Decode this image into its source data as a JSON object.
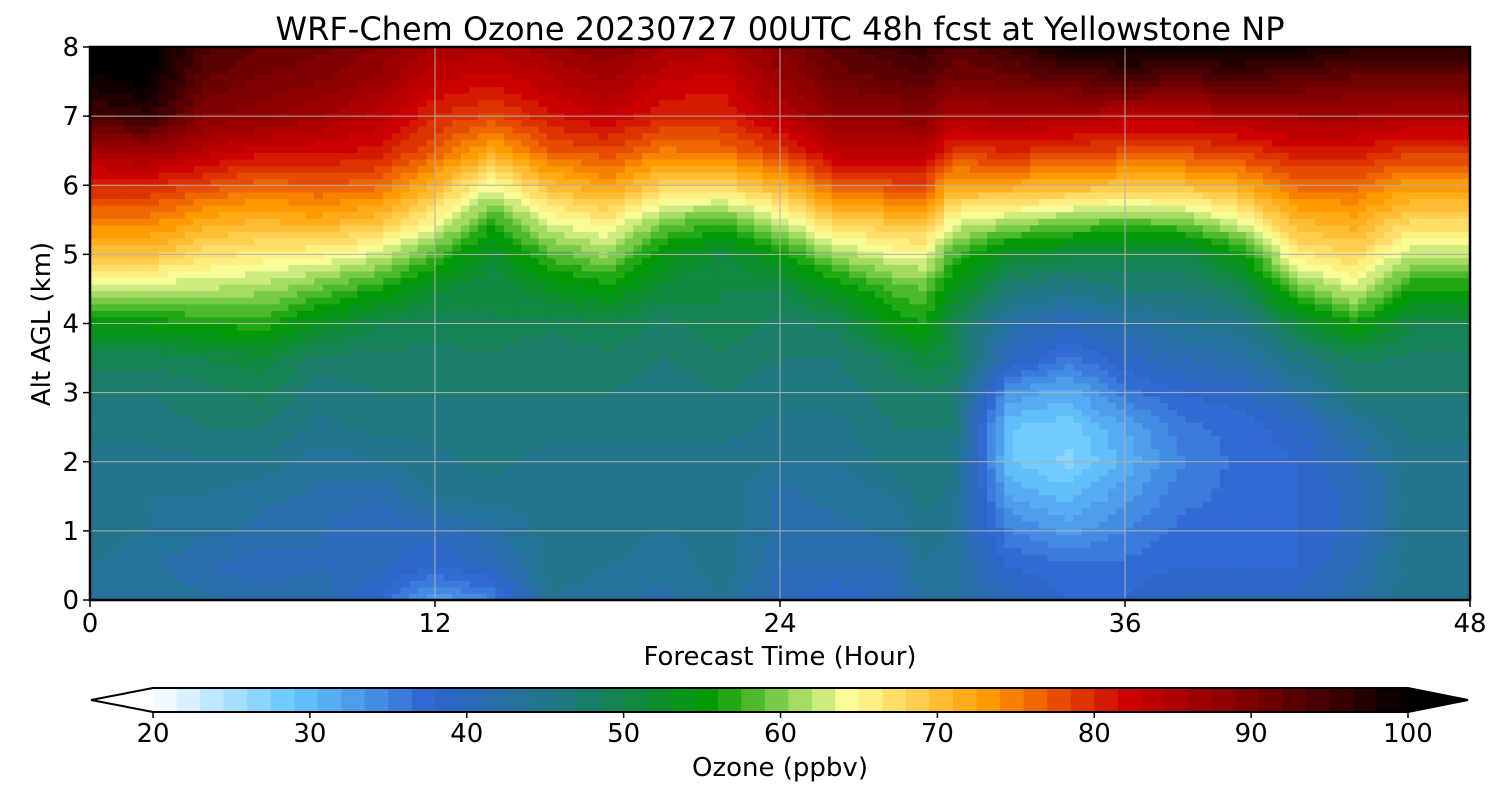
{
  "chart_data": {
    "type": "heatmap",
    "title": "WRF-Chem Ozone  20230727 00UTC 48h fcst at Yellowstone NP",
    "xlabel": "Forecast Time (Hour)",
    "ylabel": "Alt AGL (km)",
    "xlim": [
      0,
      48
    ],
    "ylim": [
      0,
      8
    ],
    "xticks": [
      0,
      12,
      24,
      36,
      48
    ],
    "yticks": [
      0,
      1,
      2,
      3,
      4,
      5,
      6,
      7,
      8
    ],
    "grid": true,
    "colorbar": {
      "label": "Ozone  (ppbv)",
      "min": 20,
      "max": 100,
      "ticks": [
        20,
        30,
        40,
        50,
        60,
        70,
        80,
        90,
        100
      ],
      "extend": "both",
      "colors": [
        "#ffffff",
        "#66c8ff",
        "#2e64d0",
        "#1f7a7a",
        "#009a00",
        "#ffff9a",
        "#ff9a00",
        "#cc0000",
        "#700000",
        "#000000"
      ]
    },
    "times": [
      0,
      2,
      4,
      6,
      8,
      10,
      12,
      14,
      16,
      18,
      20,
      22,
      24,
      26,
      28,
      29,
      30,
      32,
      34,
      36,
      38,
      40,
      42,
      44,
      46,
      48
    ],
    "levels_km": [
      0,
      0.5,
      1,
      1.5,
      2,
      2.5,
      3,
      3.5,
      4,
      4.5,
      5,
      5.5,
      6,
      6.5,
      7,
      7.5,
      8
    ],
    "values": [
      [
        44,
        44,
        45,
        45,
        45,
        46,
        47,
        49,
        55,
        62,
        70,
        75,
        80,
        86,
        94,
        99,
        101
      ],
      [
        44,
        43,
        44,
        44,
        45,
        46,
        47,
        49,
        55,
        62,
        70,
        75,
        80,
        87,
        96,
        100,
        101
      ],
      [
        43,
        41,
        43,
        44,
        45,
        47,
        48,
        50,
        56,
        62,
        67,
        72,
        78,
        84,
        89,
        92,
        94
      ],
      [
        42,
        40,
        42,
        43,
        45,
        47,
        49,
        51,
        57,
        61,
        66,
        71,
        76,
        82,
        88,
        90,
        92
      ],
      [
        42,
        41,
        41,
        42,
        43,
        45,
        46,
        48,
        53,
        59,
        65,
        72,
        77,
        82,
        86,
        89,
        91
      ],
      [
        38,
        40,
        40,
        41,
        44,
        46,
        47,
        48,
        50,
        56,
        63,
        70,
        76,
        81,
        84,
        87,
        89
      ],
      [
        32,
        38,
        40,
        44,
        45,
        46,
        47,
        48,
        49,
        52,
        58,
        65,
        71,
        77,
        80,
        83,
        86
      ],
      [
        35,
        40,
        42,
        45,
        46,
        46,
        47,
        48,
        50,
        50,
        52,
        57,
        64,
        72,
        78,
        82,
        85
      ],
      [
        44,
        45,
        45,
        44,
        45,
        46,
        47,
        47,
        49,
        53,
        58,
        64,
        70,
        77,
        81,
        84,
        87
      ],
      [
        43,
        44,
        45,
        45,
        45,
        46,
        47,
        48,
        50,
        55,
        61,
        66,
        73,
        78,
        83,
        86,
        89
      ],
      [
        42,
        43,
        44,
        44,
        45,
        46,
        46,
        47,
        48,
        51,
        54,
        60,
        68,
        75,
        80,
        83,
        86
      ],
      [
        44,
        45,
        45,
        45,
        45,
        46,
        47,
        48,
        50,
        50,
        51,
        58,
        68,
        76,
        80,
        82,
        85
      ],
      [
        40,
        41,
        42,
        42,
        44,
        45,
        46,
        47,
        48,
        50,
        55,
        63,
        71,
        79,
        84,
        87,
        89
      ],
      [
        38,
        41,
        42,
        43,
        44,
        45,
        46,
        47,
        49,
        54,
        61,
        69,
        77,
        84,
        88,
        91,
        93
      ],
      [
        40,
        41,
        43,
        44,
        46,
        47,
        48,
        49,
        55,
        58,
        64,
        70,
        78,
        84,
        88,
        92,
        95
      ],
      [
        43,
        44,
        45,
        46,
        47,
        47,
        48,
        51,
        56,
        59,
        64,
        71,
        78,
        84,
        89,
        93,
        96
      ],
      [
        43,
        43,
        44,
        45,
        46,
        47,
        48,
        50,
        50,
        54,
        58,
        64,
        72,
        79,
        85,
        90,
        93
      ],
      [
        40,
        38,
        35,
        32,
        29,
        29,
        33,
        40,
        42,
        47,
        52,
        62,
        72,
        80,
        86,
        91,
        95
      ],
      [
        38,
        37,
        33,
        30,
        27,
        28,
        31,
        36,
        40,
        45,
        51,
        60,
        71,
        79,
        85,
        92,
        99
      ],
      [
        38,
        37,
        35,
        33,
        31,
        32,
        36,
        39,
        42,
        47,
        50,
        59,
        70,
        78,
        84,
        93,
        100
      ],
      [
        40,
        38,
        37,
        36,
        35,
        36,
        38,
        41,
        44,
        47,
        50,
        60,
        70,
        78,
        84,
        92,
        100
      ],
      [
        40,
        38,
        37,
        37,
        37,
        37,
        39,
        42,
        45,
        49,
        55,
        64,
        72,
        79,
        85,
        93,
        100
      ],
      [
        40,
        38,
        38,
        38,
        38,
        39,
        42,
        46,
        51,
        59,
        66,
        71,
        76,
        81,
        86,
        92,
        99
      ],
      [
        42,
        41,
        40,
        40,
        41,
        43,
        47,
        49,
        56,
        63,
        68,
        72,
        76,
        81,
        86,
        91,
        97
      ],
      [
        45,
        45,
        45,
        45,
        45,
        46,
        47,
        48,
        50,
        56,
        62,
        68,
        73,
        79,
        85,
        91,
        97
      ],
      [
        45,
        45,
        45,
        45,
        45,
        46,
        47,
        48,
        50,
        56,
        62,
        68,
        73,
        79,
        85,
        91,
        97
      ]
    ]
  }
}
